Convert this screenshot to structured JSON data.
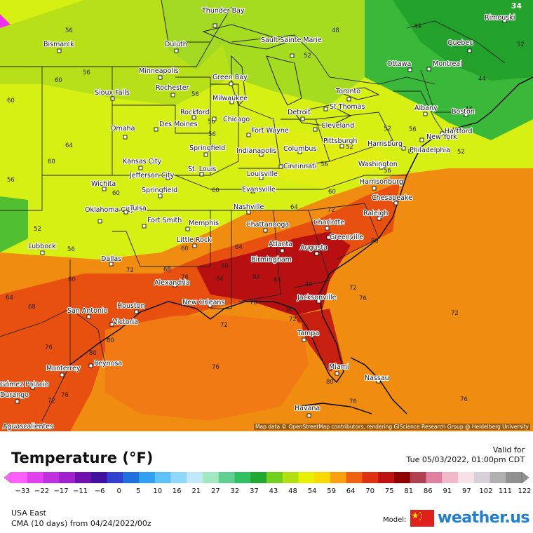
{
  "map": {
    "corner_value": "34",
    "attribution": "Map data © OpenStreetMap contributors, rendering GIScience Research Group @ Heidelberg University",
    "cities": [
      {
        "name": "Thunder Bay"
      },
      {
        "name": "Rimouski"
      },
      {
        "name": "Bismarck"
      },
      {
        "name": "Duluth"
      },
      {
        "name": "Sault Sainte Marie"
      },
      {
        "name": "Quebec"
      },
      {
        "name": "Minneapolis"
      },
      {
        "name": "Ottawa"
      },
      {
        "name": "Montreal"
      },
      {
        "name": "Green Bay"
      },
      {
        "name": "Rochester"
      },
      {
        "name": "Sioux Falls"
      },
      {
        "name": "Milwaukee"
      },
      {
        "name": "Toronto"
      },
      {
        "name": "St Thomas"
      },
      {
        "name": "Albany"
      },
      {
        "name": "Boston"
      },
      {
        "name": "Rockford"
      },
      {
        "name": "Detroit"
      },
      {
        "name": "Des Moines"
      },
      {
        "name": "Chicago"
      },
      {
        "name": "Omaha"
      },
      {
        "name": "Cleveland"
      },
      {
        "name": "Fort Wayne"
      },
      {
        "name": "Hartford"
      },
      {
        "name": "New York"
      },
      {
        "name": "Pittsburgh"
      },
      {
        "name": "Harrisburg"
      },
      {
        "name": "Springfield"
      },
      {
        "name": "Indianapolis"
      },
      {
        "name": "Columbus"
      },
      {
        "name": "Philadelphia"
      },
      {
        "name": "Kansas City"
      },
      {
        "name": "Jefferson City"
      },
      {
        "name": "St. Louis"
      },
      {
        "name": "Cincinnati"
      },
      {
        "name": "Washington"
      },
      {
        "name": "Louisville"
      },
      {
        "name": "Harrisonburg"
      },
      {
        "name": "Wichita"
      },
      {
        "name": "Springfield"
      },
      {
        "name": "Evansville"
      },
      {
        "name": "Chesapeake"
      },
      {
        "name": "Oklahoma City"
      },
      {
        "name": "Tulsa"
      },
      {
        "name": "Nashville"
      },
      {
        "name": "Raleigh"
      },
      {
        "name": "Fort Smith"
      },
      {
        "name": "Memphis"
      },
      {
        "name": "Chattanooga"
      },
      {
        "name": "Charlotte"
      },
      {
        "name": "Greenville"
      },
      {
        "name": "Little Rock"
      },
      {
        "name": "Lubbock"
      },
      {
        "name": "Atlanta"
      },
      {
        "name": "Augusta"
      },
      {
        "name": "Birmingham"
      },
      {
        "name": "Dallas"
      },
      {
        "name": "Alexandria"
      },
      {
        "name": "Jacksonville"
      },
      {
        "name": "New Orleans"
      },
      {
        "name": "San Antonio"
      },
      {
        "name": "Houston"
      },
      {
        "name": "Victoria"
      },
      {
        "name": "Tampa"
      },
      {
        "name": "Monterrey"
      },
      {
        "name": "Reynosa"
      },
      {
        "name": "Miami"
      },
      {
        "name": "Nassau"
      },
      {
        "name": "Gómez Palacio"
      },
      {
        "name": "Durango"
      },
      {
        "name": "Havana"
      },
      {
        "name": "Aguascalientes"
      }
    ],
    "contour_labels": [
      {
        "text": "56"
      },
      {
        "text": "48"
      },
      {
        "text": "44"
      },
      {
        "text": "52"
      },
      {
        "text": "56"
      },
      {
        "text": "44"
      },
      {
        "text": "52"
      },
      {
        "text": "60"
      },
      {
        "text": "56"
      },
      {
        "text": "44"
      },
      {
        "text": "56"
      },
      {
        "text": "48"
      },
      {
        "text": "60"
      },
      {
        "text": "56"
      },
      {
        "text": "64"
      },
      {
        "text": "56"
      },
      {
        "text": "52"
      },
      {
        "text": "52"
      },
      {
        "text": "56"
      },
      {
        "text": "52"
      },
      {
        "text": "60"
      },
      {
        "text": "56"
      },
      {
        "text": "60"
      },
      {
        "text": "60"
      },
      {
        "text": "60"
      },
      {
        "text": "64"
      },
      {
        "text": "60"
      },
      {
        "text": "52"
      },
      {
        "text": "56"
      },
      {
        "text": "64"
      },
      {
        "text": "72"
      },
      {
        "text": "56"
      },
      {
        "text": "60"
      },
      {
        "text": "68"
      },
      {
        "text": "72"
      },
      {
        "text": "68"
      },
      {
        "text": "76"
      },
      {
        "text": "80"
      },
      {
        "text": "84"
      },
      {
        "text": "84"
      },
      {
        "text": "80"
      },
      {
        "text": "72"
      },
      {
        "text": "80"
      },
      {
        "text": "84"
      },
      {
        "text": "76"
      },
      {
        "text": "64"
      },
      {
        "text": "72"
      },
      {
        "text": "76"
      },
      {
        "text": "80"
      },
      {
        "text": "76"
      },
      {
        "text": "72"
      },
      {
        "text": "80"
      },
      {
        "text": "76"
      },
      {
        "text": "76"
      },
      {
        "text": "72"
      },
      {
        "text": "76"
      },
      {
        "text": "80"
      },
      {
        "text": "76"
      },
      {
        "text": "80"
      },
      {
        "text": "72"
      }
    ]
  },
  "footer": {
    "title": "Temperature (°F)",
    "valid_for_label": "Valid for",
    "valid_time": "Tue 05/03/2022, 01:00pm CDT",
    "region": "USA East",
    "model_run": "CMA (10 days) from  04/24/2022/00z",
    "model_label": "Model:",
    "brand": "weather.us",
    "flag": "china-flag-icon"
  },
  "scale": {
    "ticks": [
      "−33",
      "−22",
      "−17",
      "−11",
      "−6",
      "0",
      "5",
      "10",
      "16",
      "21",
      "27",
      "32",
      "37",
      "43",
      "48",
      "54",
      "59",
      "64",
      "70",
      "75",
      "81",
      "86",
      "91",
      "97",
      "102",
      "111",
      "122"
    ],
    "colors": [
      "#ff60ff",
      "#e040f0",
      "#c030e0",
      "#a020d0",
      "#7010b0",
      "#4010a0",
      "#3040d0",
      "#2070e0",
      "#30a0f0",
      "#60c0f8",
      "#90d8fa",
      "#c0e8f8",
      "#a0e8c0",
      "#60d090",
      "#30c060",
      "#20a830",
      "#70d020",
      "#b0e010",
      "#e8f000",
      "#f8d800",
      "#f8a010",
      "#f06010",
      "#e03010",
      "#c01010",
      "#900000",
      "#b04050",
      "#e080a0",
      "#f0b8c8",
      "#f8e0e8",
      "#d8d0d8",
      "#b0b0b0",
      "#909090"
    ]
  }
}
